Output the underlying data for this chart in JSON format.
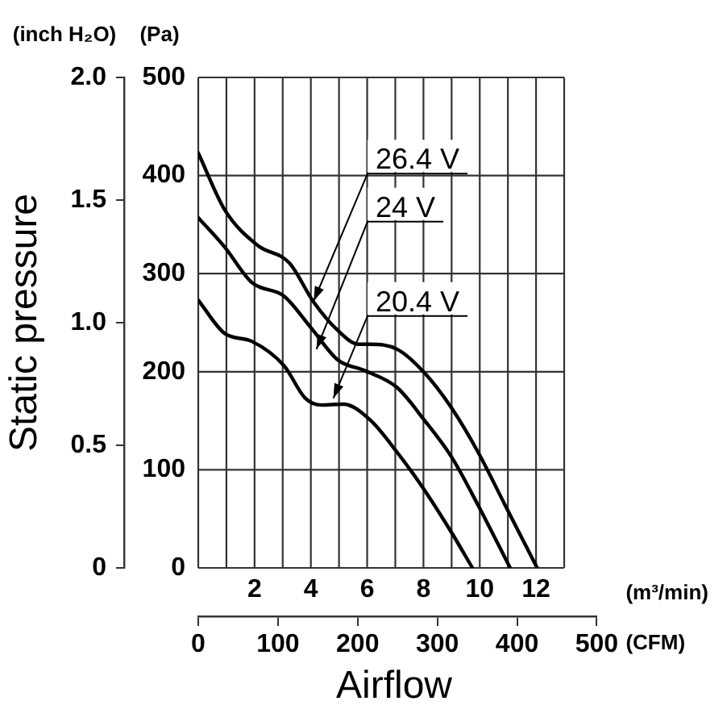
{
  "chart_data": {
    "type": "line",
    "xlabel": "(m³/min)",
    "ylabel": "(Pa)",
    "y2label": "(inch H₂O)",
    "x2label": "(CFM)",
    "xlim": [
      0,
      13
    ],
    "xticks": [
      {
        "value": 0,
        "label": null
      },
      {
        "value": 1,
        "label": null
      },
      2,
      {
        "value": 3,
        "label": null
      },
      4,
      {
        "value": 5,
        "label": null
      },
      6,
      {
        "value": 7,
        "label": null
      },
      8,
      {
        "value": 9,
        "label": null
      },
      10,
      {
        "value": 11,
        "label": null
      },
      12,
      {
        "value": 13,
        "label": null
      }
    ],
    "x2lim": [
      0,
      500
    ],
    "x2ticks": [
      0,
      100,
      200,
      300,
      400,
      500
    ],
    "ylim": [
      0,
      500
    ],
    "yticks": [
      0,
      100,
      200,
      300,
      400,
      500
    ],
    "y2lim": [
      0,
      2.0
    ],
    "y2ticks": [
      0,
      0.5,
      {
        "value": 1,
        "label": "1.0"
      },
      1.5,
      {
        "value": 2,
        "label": "2.0"
      }
    ],
    "grid": true,
    "legend": false,
    "marker": "none",
    "line_style": "solid",
    "series": [
      {
        "color": "#000000",
        "x": [
          0,
          0.94,
          2.1,
          3.23,
          4.1,
          4.96,
          5.7,
          6.1,
          7.06,
          8.0,
          9.0,
          9.94,
          10.9,
          12.04
        ],
        "values": [
          423,
          365,
          329,
          311,
          271,
          242,
          228,
          228,
          223,
          200,
          163,
          118,
          64,
          0
        ]
      },
      {
        "color": "#000000",
        "x": [
          0,
          0.94,
          1.9,
          3.05,
          4.0,
          4.96,
          5.92,
          7.06,
          8.02,
          9.0,
          9.94,
          11.08
        ],
        "values": [
          357,
          327,
          291,
          277,
          245,
          212,
          201,
          184,
          151,
          113,
          64,
          0
        ]
      },
      {
        "color": "#000000",
        "x": [
          0,
          0.94,
          1.9,
          3.05,
          3.8,
          4.38,
          5.15,
          6.1,
          7.06,
          8.02,
          9.0,
          9.74
        ],
        "values": [
          273,
          239,
          231,
          206,
          173,
          166,
          167,
          151,
          118,
          80,
          36,
          0
        ]
      }
    ],
    "annotations": [
      "Static pressure",
      "Airflow",
      {
        "text": "26.4 V",
        "x": 4.1,
        "y": 272
      },
      {
        "text": "24 V",
        "x": 4.2,
        "y": 223
      },
      {
        "text": "20.4 V",
        "x": 4.8,
        "y": 173
      }
    ]
  }
}
